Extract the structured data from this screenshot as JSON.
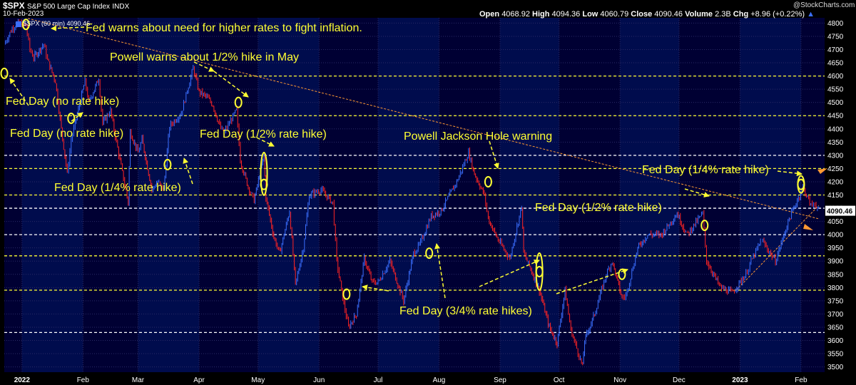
{
  "header": {
    "symbol": "$SPX",
    "name": "S&P 500 Large Cap Index",
    "exchange": "INDX",
    "date": "10-Feb-2023",
    "watermark": "@StockCharts.com",
    "open_label": "Open",
    "open": "4068.92",
    "high_label": "High",
    "high": "4094.36",
    "low_label": "Low",
    "low": "4060.79",
    "close_label": "Close",
    "close": "4090.46",
    "volume_label": "Volume",
    "volume": "2.3B",
    "chg_label": "Chg",
    "chg": "+8.96 (+0.22%)",
    "legend": "$SPX (60 min) 4090.46"
  },
  "colors": {
    "background": "#000000",
    "panel": "#000033",
    "band": "#000c4d",
    "grid": "#2a2a66",
    "up": "#3b6fff",
    "down": "#ff2424",
    "annotation": "#ffff33",
    "trendline": "#ff9933",
    "last_price_box": "#ffffff"
  },
  "chart_data": {
    "type": "line",
    "title": "$SPX S&P 500 Large Cap Index INDX",
    "interval": "60 min",
    "ylim": [
      3480,
      4820
    ],
    "y_ticks": [
      3500,
      3550,
      3600,
      3650,
      3700,
      3750,
      3800,
      3850,
      3900,
      3950,
      4000,
      4050,
      4100,
      4150,
      4200,
      4250,
      4300,
      4350,
      4400,
      4450,
      4500,
      4550,
      4600,
      4650,
      4700,
      4750,
      4800
    ],
    "x_tick_labels": [
      "2022",
      "Feb",
      "Mar",
      "Apr",
      "May",
      "Jun",
      "Jul",
      "Aug",
      "Sep",
      "Oct",
      "Nov",
      "Dec",
      "2023",
      "Feb"
    ],
    "x_tick_dates": [
      "2022-01-01",
      "2022-02-01",
      "2022-03-01",
      "2022-04-01",
      "2022-05-01",
      "2022-06-01",
      "2022-07-01",
      "2022-08-01",
      "2022-09-01",
      "2022-10-01",
      "2022-11-01",
      "2022-12-01",
      "2023-01-01",
      "2023-02-01"
    ],
    "xlim": [
      "2021-12-23",
      "2023-02-13"
    ],
    "series": [
      {
        "values": [
          {
            "x": "2021-12-23",
            "y": 4720
          },
          {
            "x": "2021-12-27",
            "y": 4780
          },
          {
            "x": "2021-12-30",
            "y": 4800
          },
          {
            "x": "2022-01-03",
            "y": 4790
          },
          {
            "x": "2022-01-05",
            "y": 4700
          },
          {
            "x": "2022-01-07",
            "y": 4670
          },
          {
            "x": "2022-01-12",
            "y": 4720
          },
          {
            "x": "2022-01-14",
            "y": 4660
          },
          {
            "x": "2022-01-18",
            "y": 4580
          },
          {
            "x": "2022-01-21",
            "y": 4400
          },
          {
            "x": "2022-01-24",
            "y": 4230
          },
          {
            "x": "2022-01-26",
            "y": 4360
          },
          {
            "x": "2022-01-28",
            "y": 4420
          },
          {
            "x": "2022-02-02",
            "y": 4580
          },
          {
            "x": "2022-02-04",
            "y": 4500
          },
          {
            "x": "2022-02-09",
            "y": 4590
          },
          {
            "x": "2022-02-11",
            "y": 4420
          },
          {
            "x": "2022-02-15",
            "y": 4470
          },
          {
            "x": "2022-02-18",
            "y": 4350
          },
          {
            "x": "2022-02-24",
            "y": 4120
          },
          {
            "x": "2022-02-25",
            "y": 4390
          },
          {
            "x": "2022-03-01",
            "y": 4310
          },
          {
            "x": "2022-03-03",
            "y": 4360
          },
          {
            "x": "2022-03-08",
            "y": 4170
          },
          {
            "x": "2022-03-11",
            "y": 4200
          },
          {
            "x": "2022-03-14",
            "y": 4170
          },
          {
            "x": "2022-03-17",
            "y": 4410
          },
          {
            "x": "2022-03-23",
            "y": 4460
          },
          {
            "x": "2022-03-29",
            "y": 4630
          },
          {
            "x": "2022-04-01",
            "y": 4540
          },
          {
            "x": "2022-04-05",
            "y": 4520
          },
          {
            "x": "2022-04-08",
            "y": 4490
          },
          {
            "x": "2022-04-12",
            "y": 4400
          },
          {
            "x": "2022-04-14",
            "y": 4390
          },
          {
            "x": "2022-04-20",
            "y": 4470
          },
          {
            "x": "2022-04-22",
            "y": 4280
          },
          {
            "x": "2022-04-26",
            "y": 4180
          },
          {
            "x": "2022-04-29",
            "y": 4130
          },
          {
            "x": "2022-05-04",
            "y": 4300
          },
          {
            "x": "2022-05-05",
            "y": 4140
          },
          {
            "x": "2022-05-09",
            "y": 3990
          },
          {
            "x": "2022-05-12",
            "y": 3930
          },
          {
            "x": "2022-05-17",
            "y": 4090
          },
          {
            "x": "2022-05-20",
            "y": 3810
          },
          {
            "x": "2022-05-24",
            "y": 3950
          },
          {
            "x": "2022-05-27",
            "y": 4150
          },
          {
            "x": "2022-06-02",
            "y": 4170
          },
          {
            "x": "2022-06-08",
            "y": 4120
          },
          {
            "x": "2022-06-10",
            "y": 3900
          },
          {
            "x": "2022-06-13",
            "y": 3760
          },
          {
            "x": "2022-06-16",
            "y": 3650
          },
          {
            "x": "2022-06-20",
            "y": 3700
          },
          {
            "x": "2022-06-24",
            "y": 3910
          },
          {
            "x": "2022-06-28",
            "y": 3820
          },
          {
            "x": "2022-07-01",
            "y": 3820
          },
          {
            "x": "2022-07-07",
            "y": 3900
          },
          {
            "x": "2022-07-14",
            "y": 3750
          },
          {
            "x": "2022-07-19",
            "y": 3930
          },
          {
            "x": "2022-07-22",
            "y": 3960
          },
          {
            "x": "2022-07-28",
            "y": 4070
          },
          {
            "x": "2022-08-02",
            "y": 4090
          },
          {
            "x": "2022-08-10",
            "y": 4200
          },
          {
            "x": "2022-08-16",
            "y": 4310
          },
          {
            "x": "2022-08-19",
            "y": 4230
          },
          {
            "x": "2022-08-24",
            "y": 4150
          },
          {
            "x": "2022-08-26",
            "y": 4060
          },
          {
            "x": "2022-08-31",
            "y": 3980
          },
          {
            "x": "2022-09-06",
            "y": 3910
          },
          {
            "x": "2022-09-12",
            "y": 4110
          },
          {
            "x": "2022-09-13",
            "y": 3930
          },
          {
            "x": "2022-09-16",
            "y": 3880
          },
          {
            "x": "2022-09-21",
            "y": 3790
          },
          {
            "x": "2022-09-26",
            "y": 3650
          },
          {
            "x": "2022-09-30",
            "y": 3590
          },
          {
            "x": "2022-10-04",
            "y": 3790
          },
          {
            "x": "2022-10-07",
            "y": 3640
          },
          {
            "x": "2022-10-13",
            "y": 3500
          },
          {
            "x": "2022-10-14",
            "y": 3600
          },
          {
            "x": "2022-10-19",
            "y": 3700
          },
          {
            "x": "2022-10-25",
            "y": 3850
          },
          {
            "x": "2022-10-28",
            "y": 3900
          },
          {
            "x": "2022-11-02",
            "y": 3760
          },
          {
            "x": "2022-11-04",
            "y": 3770
          },
          {
            "x": "2022-11-10",
            "y": 3950
          },
          {
            "x": "2022-11-15",
            "y": 4000
          },
          {
            "x": "2022-11-22",
            "y": 4000
          },
          {
            "x": "2022-11-30",
            "y": 4080
          },
          {
            "x": "2022-12-05",
            "y": 4000
          },
          {
            "x": "2022-12-13",
            "y": 4080
          },
          {
            "x": "2022-12-15",
            "y": 3900
          },
          {
            "x": "2022-12-22",
            "y": 3800
          },
          {
            "x": "2022-12-28",
            "y": 3780
          },
          {
            "x": "2023-01-04",
            "y": 3850
          },
          {
            "x": "2023-01-06",
            "y": 3890
          },
          {
            "x": "2023-01-12",
            "y": 3980
          },
          {
            "x": "2023-01-19",
            "y": 3900
          },
          {
            "x": "2023-01-26",
            "y": 4060
          },
          {
            "x": "2023-02-02",
            "y": 4180
          },
          {
            "x": "2023-02-06",
            "y": 4110
          },
          {
            "x": "2023-02-08",
            "y": 4120
          },
          {
            "x": "2023-02-10",
            "y": 4090
          }
        ]
      }
    ],
    "horizontal_lines": {
      "white": [
        4100,
        4300,
        4000,
        3630
      ],
      "yellow": [
        4600,
        4450,
        4250,
        4150,
        3920,
        3790
      ]
    },
    "trendlines": [
      {
        "from": {
          "x": "2022-01-04",
          "y": 4818
        },
        "to": {
          "x": "2023-02-10",
          "y": 4060
        }
      },
      {
        "from": {
          "x": "2022-12-30",
          "y": 3790
        },
        "to": {
          "x": "2023-02-10",
          "y": 4110
        }
      }
    ],
    "last_price": "4090.46",
    "annotations": {
      "fed_warns": "Fed warns about need for higher rates to fight inflation.",
      "powell_may": "Powell warns about 1/2% hike in May",
      "fed_no_hike_1": "Fed Day (no rate hike)",
      "fed_no_hike_2": "Fed Day (no rate hike)",
      "fed_half_may": "Fed Day (1/2% rate hike)",
      "fed_quarter_mar": "Fed Day (1/4% rate hike)",
      "jackson_hole": "Powell Jackson Hole warning",
      "fed_quarter_feb": "Fed Day (1/4% rate hike)",
      "fed_half_dec": "Fed Day (1/2% rate hike)",
      "fed_three_quarter": "Fed Day (3/4% rate hikes)"
    },
    "markers": [
      {
        "x": "2021-12-23",
        "y": 4610
      },
      {
        "x": "2022-01-03",
        "y": 4795
      },
      {
        "x": "2022-01-26",
        "y": 4440
      },
      {
        "x": "2022-03-16",
        "y": 4265
      },
      {
        "x": "2022-04-21",
        "y": 4500
      },
      {
        "x": "2022-05-04",
        "y": 4190
      },
      {
        "x": "2022-06-15",
        "y": 3775
      },
      {
        "x": "2022-07-27",
        "y": 3930
      },
      {
        "x": "2022-08-26",
        "y": 4200
      },
      {
        "x": "2022-09-21",
        "y": 3860
      },
      {
        "x": "2022-11-02",
        "y": 3850
      },
      {
        "x": "2022-12-14",
        "y": 4035
      },
      {
        "x": "2023-02-01",
        "y": 4190
      }
    ],
    "grid": true,
    "legend_position": "top-left"
  }
}
